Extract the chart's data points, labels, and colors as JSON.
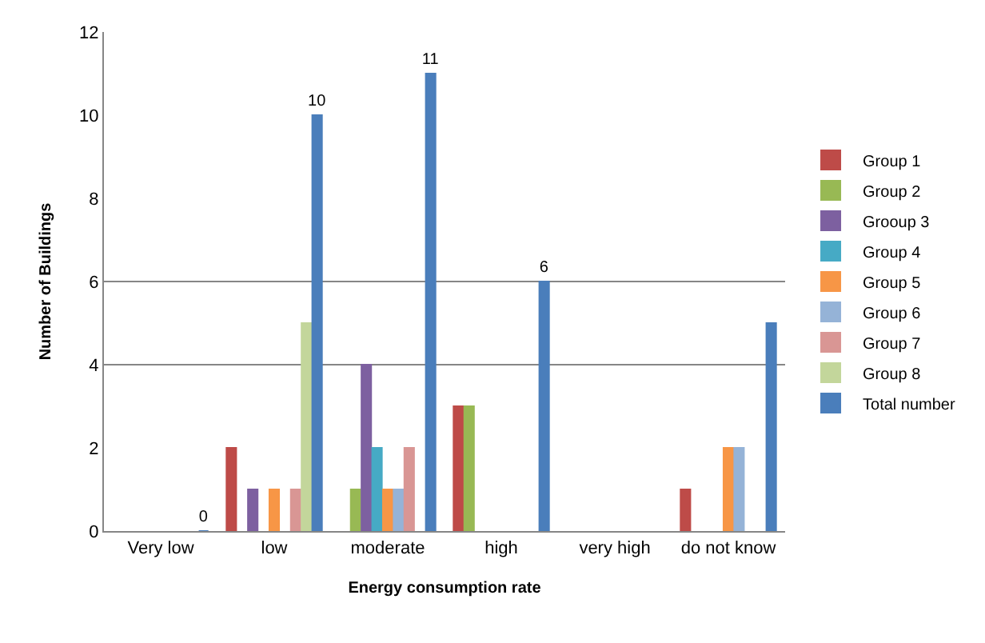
{
  "chart_data": {
    "type": "bar",
    "xlabel": "Energy consumption rate",
    "ylabel": "Number of Buildings",
    "categories": [
      "Very low",
      "low",
      "moderate",
      "high",
      "very high",
      "do not know"
    ],
    "series": [
      {
        "name": "Group 1",
        "color": "#be4b48",
        "values": [
          null,
          2,
          null,
          3,
          null,
          1
        ]
      },
      {
        "name": "Group 2",
        "color": "#98b954",
        "values": [
          null,
          null,
          1,
          3,
          null,
          null
        ]
      },
      {
        "name": "Grooup 3",
        "color": "#7d60a0",
        "values": [
          null,
          1,
          4,
          null,
          null,
          null
        ]
      },
      {
        "name": "Group 4",
        "color": "#46aac5",
        "values": [
          null,
          null,
          2,
          null,
          null,
          null
        ]
      },
      {
        "name": "Group 5",
        "color": "#f79646",
        "values": [
          null,
          1,
          1,
          null,
          null,
          2
        ]
      },
      {
        "name": "Group 6",
        "color": "#95b3d7",
        "values": [
          null,
          null,
          1,
          null,
          null,
          2
        ]
      },
      {
        "name": "Group 7",
        "color": "#d99694",
        "values": [
          null,
          1,
          2,
          null,
          null,
          null
        ]
      },
      {
        "name": "Group 8",
        "color": "#c3d69b",
        "values": [
          null,
          5,
          null,
          null,
          null,
          null
        ]
      },
      {
        "name": "Total number",
        "color": "#4a7ebb",
        "values": [
          0,
          10,
          11,
          6,
          null,
          5
        ],
        "value_labels": [
          "0",
          "10",
          "11",
          "6",
          null,
          null
        ]
      }
    ],
    "ylim": [
      0,
      12
    ],
    "yticks": [
      0,
      2,
      4,
      6,
      8,
      10,
      12
    ],
    "ref_lines": [
      {
        "axis": "y",
        "value": 4,
        "color": "#868686"
      },
      {
        "axis": "y",
        "value": 6,
        "color": "#868686"
      }
    ],
    "grid": false,
    "legend": "right"
  }
}
